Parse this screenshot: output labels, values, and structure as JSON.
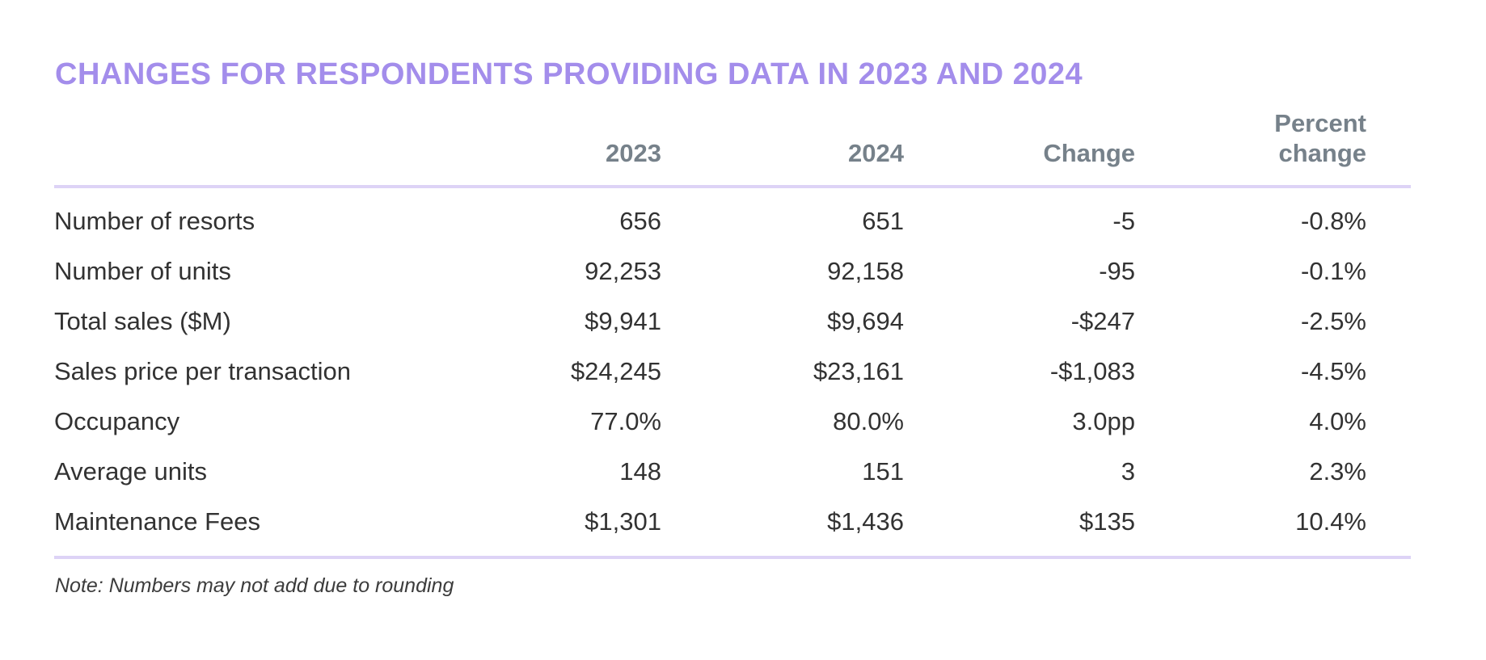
{
  "chart_data": {
    "type": "table",
    "title": "CHANGES FOR RESPONDENTS PROVIDING DATA IN 2023 AND 2024",
    "column_headers": [
      "2023",
      "2024",
      "Change",
      "Percent change"
    ],
    "rows": [
      {
        "label": "Number of resorts",
        "y2023": "656",
        "y2024": "651",
        "change": "-5",
        "percent_change": "-0.8%"
      },
      {
        "label": "Number of units",
        "y2023": "92,253",
        "y2024": "92,158",
        "change": "-95",
        "percent_change": "-0.1%"
      },
      {
        "label": "Total sales ($M)",
        "y2023": "$9,941",
        "y2024": "$9,694",
        "change": "-$247",
        "percent_change": "-2.5%"
      },
      {
        "label": "Sales price per transaction",
        "y2023": "$24,245",
        "y2024": "$23,161",
        "change": "-$1,083",
        "percent_change": "-4.5%"
      },
      {
        "label": "Occupancy",
        "y2023": "77.0%",
        "y2024": "80.0%",
        "change": "3.0pp",
        "percent_change": "4.0%"
      },
      {
        "label": "Average units",
        "y2023": "148",
        "y2024": "151",
        "change": "3",
        "percent_change": "2.3%"
      },
      {
        "label": "Maintenance Fees",
        "y2023": "$1,301",
        "y2024": "$1,436",
        "change": "$135",
        "percent_change": "10.4%"
      }
    ],
    "note": "Note: Numbers may not add due to rounding",
    "layout": {
      "grid": "off",
      "header_rule": "on",
      "bottom_rule": "on"
    }
  },
  "header_display": {
    "label": "",
    "c2023": "2023",
    "c2024": "2024",
    "change": "Change",
    "percent_change": "Percent\nchange"
  },
  "colors": {
    "title": "#a38deb",
    "rule": "#ddd3f6",
    "header_text": "#76818a",
    "body_text": "#323232"
  }
}
